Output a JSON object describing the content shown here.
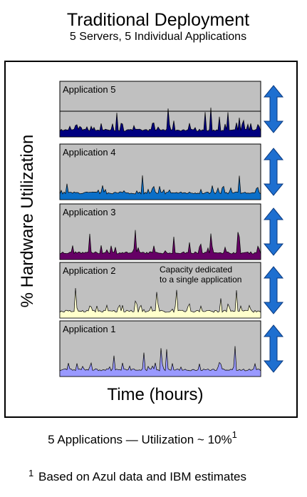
{
  "header": {
    "title": "Traditional Deployment",
    "subtitle": "5 Servers, 5 Individual Applications"
  },
  "y_axis_label": "% Hardware Utilization",
  "x_axis_label": "Time (hours)",
  "panels": [
    {
      "label": "Application 5",
      "color": "#000080"
    },
    {
      "label": "Application 4",
      "color": "#0a6fc8"
    },
    {
      "label": "Application 3",
      "color": "#660066"
    },
    {
      "label": "Application 2",
      "color": "#ffffcc",
      "annotation": [
        "Capacity dedicated",
        "to a single application"
      ]
    },
    {
      "label": "Application 1",
      "color": "#9999ff"
    }
  ],
  "summary": {
    "text": "5 Applications — Utilization ~ 10%",
    "marker": "1"
  },
  "footnote": {
    "marker": "1",
    "text": "Based on Azul data and IBM estimates"
  }
}
